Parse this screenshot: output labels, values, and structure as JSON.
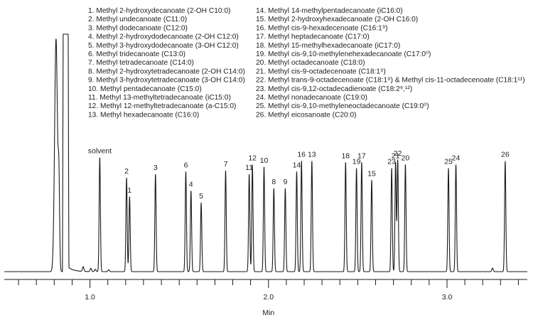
{
  "chart_data": {
    "type": "line",
    "title": "",
    "xlabel": "Min",
    "ylabel": "",
    "xlim": [
      0.52,
      3.45
    ],
    "ylim": [
      0,
      100
    ],
    "x_ticks": [
      {
        "value": 1.0,
        "label": "1.0"
      },
      {
        "value": 2.0,
        "label": "2.0"
      },
      {
        "value": 3.0,
        "label": "3.0"
      }
    ],
    "minor_tick_step": 0.1,
    "grid": false,
    "line_color": "#1a1a1a",
    "solvent_front": [
      {
        "x": 0.81,
        "y": 98.0,
        "w": 0.008
      },
      {
        "x": 0.826,
        "y": 34.0,
        "w": 0.004
      },
      {
        "x": 0.864,
        "y": 100.0,
        "w": 0.028,
        "flat": true
      }
    ],
    "minor_peaks": [
      {
        "x": 0.962,
        "y": 2.0
      },
      {
        "x": 1.005,
        "y": 1.4
      },
      {
        "x": 1.03,
        "y": 1.0
      },
      {
        "x": 1.105,
        "y": 0.8
      },
      {
        "x": 3.255,
        "y": 1.5
      }
    ],
    "peaks": [
      {
        "label": "solvent",
        "x": 1.055,
        "y": 48.0
      },
      {
        "label": "2",
        "x": 1.205,
        "y": 39.5
      },
      {
        "label": "1",
        "x": 1.222,
        "y": 31.5
      },
      {
        "label": "3",
        "x": 1.367,
        "y": 41.0
      },
      {
        "label": "6",
        "x": 1.537,
        "y": 42.0
      },
      {
        "label": "4",
        "x": 1.566,
        "y": 34.0
      },
      {
        "label": "5",
        "x": 1.623,
        "y": 29.0
      },
      {
        "label": "7",
        "x": 1.76,
        "y": 42.5
      },
      {
        "label": "11",
        "x": 1.892,
        "y": 41.0
      },
      {
        "label": "12",
        "x": 1.91,
        "y": 45.0
      },
      {
        "label": "10",
        "x": 1.975,
        "y": 44.0
      },
      {
        "label": "8",
        "x": 2.03,
        "y": 35.0
      },
      {
        "label": "9",
        "x": 2.094,
        "y": 35.0
      },
      {
        "label": "14",
        "x": 2.158,
        "y": 42.0
      },
      {
        "label": "16",
        "x": 2.185,
        "y": 46.5
      },
      {
        "label": "13",
        "x": 2.243,
        "y": 46.5
      },
      {
        "label": "18",
        "x": 2.432,
        "y": 46.0
      },
      {
        "label": "19",
        "x": 2.493,
        "y": 43.5
      },
      {
        "label": "17",
        "x": 2.522,
        "y": 46.0
      },
      {
        "label": "15",
        "x": 2.578,
        "y": 38.5
      },
      {
        "label": "23",
        "x": 2.69,
        "y": 43.5
      },
      {
        "label": "21",
        "x": 2.712,
        "y": 46.0
      },
      {
        "label": "22",
        "x": 2.724,
        "y": 47.0
      },
      {
        "label": "20",
        "x": 2.767,
        "y": 45.0
      },
      {
        "label": "25",
        "x": 3.008,
        "y": 43.5
      },
      {
        "label": "24",
        "x": 3.05,
        "y": 45.0
      },
      {
        "label": "26",
        "x": 3.326,
        "y": 46.5
      }
    ],
    "legend": {
      "placement": "top-center",
      "column_1": [
        "1.   Methyl 2-hydroxydecanoate (2-OH C10:0)",
        "2.   Methyl undecanoate (C11:0)",
        "3.   Methyl dodecanoate (C12:0)",
        "4.   Methyl 2-hydroxydodecanoate (2-OH C12:0)",
        "5.   Methyl 3-hydroxydodecanoate (3-OH C12:0)",
        "6.   Methyl tridecanoate (C13:0)",
        "7.   Methyl tetradecanoate (C14:0)",
        "8.   Methyl 2-hydroxytetradecanoate (2-OH C14:0)",
        "9.   Methyl 3-hydroxytetradecanoate (3-OH C14:0)",
        "10.  Methyl pentadecanoate (C15:0)",
        "11.  Methyl 13-methyltetradecanoate (iC15:0)",
        "12.  Methyl 12-methyltetradecanoate (a-C15:0)",
        "13.  Methyl hexadecanoate (C16:0)"
      ],
      "column_2": [
        "14.  Methyl 14-methylpentadecanoate (iC16:0)",
        "15.  Methyl 2-hydroxyhexadecanoate (2-OH C16:0)",
        "16.  Methyl cis-9-hexadecenoate (C16:1⁹)",
        "17.  Methyl heptadecanoate (C17:0)",
        "18.  Methyl 15-methylhexadecanoate (iC17:0)",
        "19.  Methyl cis-9,10-methylenehexadecanoate (C17:0⁰)",
        "20.  Methyl octadecanoate (C18:0)",
        "21.  Methyl cis-9-octadecenoate (C18:1⁹)",
        "22.  Methyl trans-9-octadecenoate (C18:1⁹) & Methyl cis-11-octadecenoate (C18:1¹¹)",
        "23.  Methyl cis-9,12-octadecadienoate (C18:2⁹,¹²)",
        "24.  Methyl nonadecanoate (C19:0)",
        "25.  Methyl cis-9,10-methyleneoctadecanoate (C19:0⁰)",
        "26.  Methyl eicosanoate (C20:0)"
      ]
    }
  }
}
